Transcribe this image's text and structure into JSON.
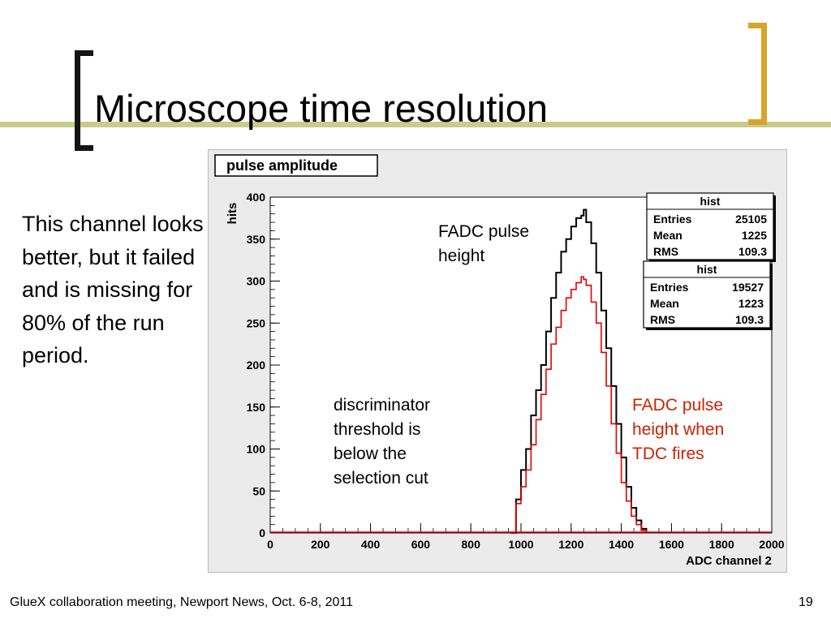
{
  "slide": {
    "title": "Microscope time resolution",
    "side_text": "This channel looks better, but it failed and is missing for 80% of the run period.",
    "footer": "GlueX collaboration meeting, Newport News, Oct. 6-8, 2011",
    "page_number": "19",
    "colors": {
      "accent_line": "#c9cc8c",
      "bracket_left": "#141414",
      "bracket_right": "#d7a528",
      "plot_bg": "#ebebeb"
    }
  },
  "annotations": {
    "fadc": "FADC pulse height",
    "disc": "discriminator threshold is below the selection cut",
    "tdc": "FADC pulse height when TDC fires"
  },
  "chart_data": {
    "type": "bar",
    "title": "pulse amplitude",
    "xlabel": "ADC channel 2",
    "ylabel": "hits",
    "xlim": [
      0,
      2000
    ],
    "ylim": [
      0,
      400
    ],
    "xticks": [
      0,
      200,
      400,
      600,
      800,
      1000,
      1200,
      1400,
      1600,
      1800,
      2000
    ],
    "yticks": [
      0,
      50,
      100,
      150,
      200,
      250,
      300,
      350,
      400
    ],
    "series": [
      {
        "color": "#000000",
        "x": [
          960,
          980,
          1000,
          1020,
          1040,
          1060,
          1080,
          1100,
          1120,
          1140,
          1160,
          1180,
          1200,
          1220,
          1240,
          1250,
          1260,
          1280,
          1300,
          1320,
          1340,
          1360,
          1380,
          1400,
          1420,
          1440,
          1460,
          1480,
          1500
        ],
        "y": [
          0,
          40,
          75,
          100,
          140,
          170,
          200,
          240,
          280,
          310,
          335,
          350,
          365,
          375,
          378,
          385,
          370,
          345,
          310,
          265,
          220,
          175,
          130,
          90,
          55,
          30,
          15,
          5,
          0
        ]
      },
      {
        "color": "#e00000",
        "x": [
          960,
          980,
          1000,
          1020,
          1040,
          1060,
          1080,
          1100,
          1120,
          1140,
          1160,
          1180,
          1200,
          1220,
          1240,
          1250,
          1260,
          1280,
          1300,
          1320,
          1340,
          1360,
          1380,
          1400,
          1420,
          1440,
          1460,
          1480,
          1500
        ],
        "y": [
          0,
          35,
          55,
          75,
          105,
          135,
          165,
          195,
          225,
          245,
          265,
          280,
          290,
          298,
          305,
          302,
          295,
          275,
          250,
          215,
          175,
          130,
          95,
          60,
          38,
          20,
          10,
          3,
          0
        ]
      }
    ],
    "stats": [
      {
        "title": "hist",
        "rows": [
          [
            "Entries",
            "25105"
          ],
          [
            "Mean",
            "1225"
          ],
          [
            "RMS",
            "109.3"
          ]
        ]
      },
      {
        "title": "hist",
        "rows": [
          [
            "Entries",
            "19527"
          ],
          [
            "Mean",
            "1223"
          ],
          [
            "RMS",
            "109.3"
          ]
        ]
      }
    ]
  }
}
